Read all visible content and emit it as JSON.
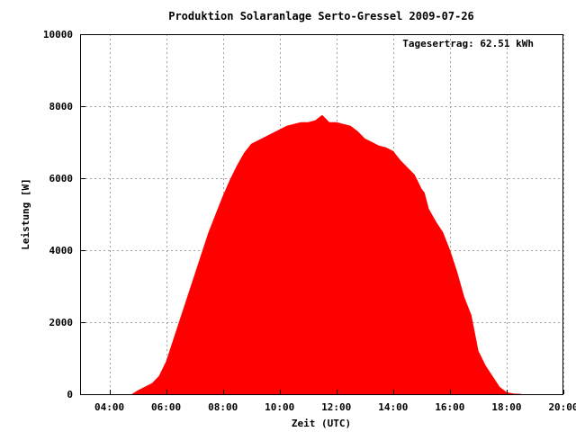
{
  "chart_data": {
    "type": "area",
    "title": "Produktion Solaranlage Serto-Gressel 2009-07-26",
    "xlabel": "Zeit (UTC)",
    "ylabel": "Leistung [W]",
    "xlim": [
      3,
      20
    ],
    "ylim": [
      0,
      10000
    ],
    "x_ticks": [
      {
        "value": 4,
        "label": "04:00"
      },
      {
        "value": 6,
        "label": "06:00"
      },
      {
        "value": 8,
        "label": "08:00"
      },
      {
        "value": 10,
        "label": "10:00"
      },
      {
        "value": 12,
        "label": "12:00"
      },
      {
        "value": 14,
        "label": "14:00"
      },
      {
        "value": 16,
        "label": "16:00"
      },
      {
        "value": 18,
        "label": "18:00"
      },
      {
        "value": 20,
        "label": "20:00"
      }
    ],
    "y_ticks": [
      {
        "value": 0,
        "label": "0"
      },
      {
        "value": 2000,
        "label": "2000"
      },
      {
        "value": 4000,
        "label": "4000"
      },
      {
        "value": 6000,
        "label": "6000"
      },
      {
        "value": 8000,
        "label": "8000"
      },
      {
        "value": 10000,
        "label": "10000"
      }
    ],
    "grid": true,
    "annotation": "Tagesertrag: 62.51 kWh",
    "color": "#ff0000",
    "series": [
      {
        "x": [
          4.8,
          5.0,
          5.25,
          5.5,
          5.75,
          6.0,
          6.25,
          6.5,
          6.75,
          7.0,
          7.25,
          7.5,
          7.75,
          8.0,
          8.25,
          8.5,
          8.75,
          9.0,
          9.25,
          9.5,
          9.75,
          10.0,
          10.25,
          10.5,
          10.75,
          11.0,
          11.25,
          11.5,
          11.75,
          12.0,
          12.25,
          12.5,
          12.75,
          13.0,
          13.25,
          13.5,
          13.75,
          14.0,
          14.25,
          14.5,
          14.75,
          15.0,
          15.1,
          15.25,
          15.5,
          15.75,
          16.0,
          16.25,
          16.5,
          16.75,
          17.0,
          17.25,
          17.5,
          17.75,
          18.0,
          18.25,
          18.5
        ],
        "y": [
          0,
          100,
          200,
          300,
          500,
          900,
          1500,
          2100,
          2700,
          3300,
          3900,
          4500,
          5000,
          5500,
          5950,
          6350,
          6700,
          6950,
          7050,
          7150,
          7250,
          7350,
          7450,
          7500,
          7550,
          7550,
          7600,
          7750,
          7550,
          7550,
          7500,
          7450,
          7300,
          7100,
          7000,
          6900,
          6850,
          6750,
          6500,
          6300,
          6100,
          5700,
          5600,
          5150,
          4800,
          4500,
          4000,
          3400,
          2700,
          2200,
          1200,
          800,
          500,
          200,
          50,
          10,
          0
        ]
      }
    ]
  }
}
